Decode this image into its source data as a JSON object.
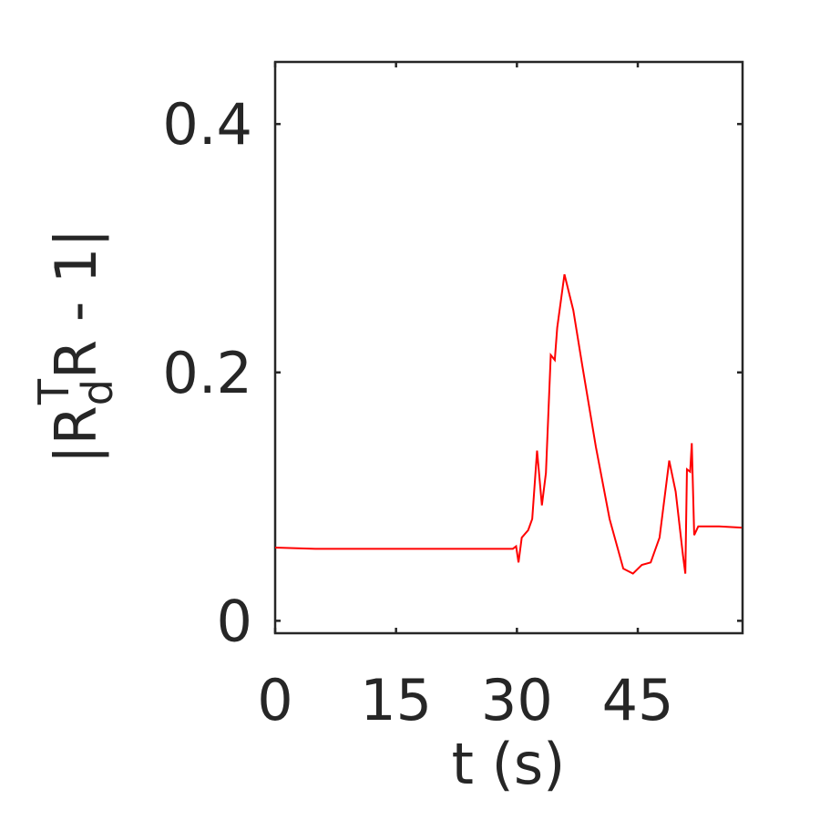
{
  "chart_data": {
    "type": "line",
    "x_label": "t (s)",
    "y_label_parts": [
      "|R",
      "d",
      "T",
      "R - 1|"
    ],
    "xlim": [
      0,
      58
    ],
    "xticks": [
      0,
      15,
      30,
      45
    ],
    "ylim": [
      -0.01,
      0.45
    ],
    "yticks": [
      0,
      0.2,
      0.4
    ],
    "grid": false,
    "series": [
      {
        "color": "#ff0000",
        "x": [
          0,
          5,
          29.5,
          29.9,
          30.2,
          30.6,
          31.4,
          31.9,
          32.5,
          33.1,
          33.6,
          34.2,
          34.7,
          35.0,
          35.9,
          37.0,
          38.1,
          39.8,
          41.5,
          43.2,
          44.4,
          45.5,
          46.6,
          47.7,
          48.9,
          49.7,
          50.6,
          50.9,
          51.1,
          51.5,
          51.7,
          52.0,
          52.5,
          55.1,
          57.9
        ],
        "values": [
          0.059,
          0.058,
          0.058,
          0.06,
          0.047,
          0.067,
          0.073,
          0.082,
          0.137,
          0.093,
          0.119,
          0.214,
          0.21,
          0.236,
          0.279,
          0.25,
          0.206,
          0.14,
          0.082,
          0.042,
          0.038,
          0.045,
          0.047,
          0.067,
          0.129,
          0.104,
          0.053,
          0.038,
          0.122,
          0.12,
          0.143,
          0.069,
          0.076,
          0.076,
          0.075
        ]
      }
    ]
  }
}
